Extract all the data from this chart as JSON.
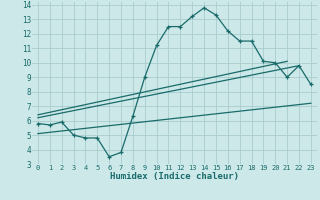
{
  "xlabel": "Humidex (Indice chaleur)",
  "background_color": "#cce8e8",
  "grid_color": "#aacccc",
  "line_color": "#1a6b6b",
  "xlim": [
    -0.5,
    23.5
  ],
  "ylim": [
    3,
    14.2
  ],
  "xticks": [
    0,
    1,
    2,
    3,
    4,
    5,
    6,
    7,
    8,
    9,
    10,
    11,
    12,
    13,
    14,
    15,
    16,
    17,
    18,
    19,
    20,
    21,
    22,
    23
  ],
  "yticks": [
    3,
    4,
    5,
    6,
    7,
    8,
    9,
    10,
    11,
    12,
    13,
    14
  ],
  "main_x": [
    0,
    1,
    2,
    3,
    4,
    5,
    6,
    7,
    8,
    9,
    10,
    11,
    12,
    13,
    14,
    15,
    16,
    17,
    18,
    19,
    20,
    21,
    22,
    23
  ],
  "main_y": [
    5.8,
    5.7,
    5.9,
    5.0,
    4.8,
    4.8,
    3.5,
    3.8,
    6.3,
    9.0,
    11.2,
    12.5,
    12.5,
    13.2,
    13.8,
    13.3,
    12.2,
    11.5,
    11.5,
    10.1,
    10.0,
    9.0,
    9.8,
    8.5
  ],
  "line1_x": [
    0,
    21
  ],
  "line1_y": [
    6.4,
    10.1
  ],
  "line2_x": [
    0,
    22
  ],
  "line2_y": [
    6.2,
    9.8
  ],
  "line3_x": [
    0,
    23
  ],
  "line3_y": [
    5.1,
    7.2
  ]
}
